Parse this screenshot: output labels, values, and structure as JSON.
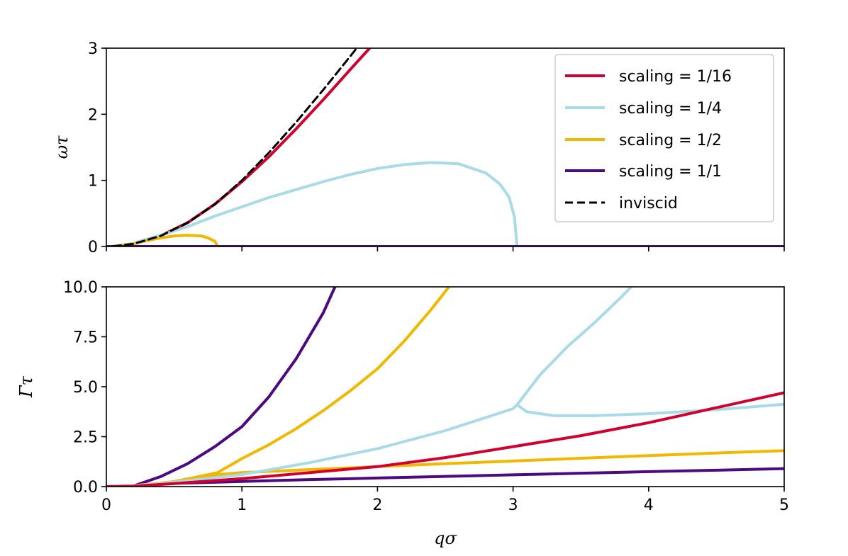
{
  "chart_data": [
    {
      "type": "line",
      "panel": "top",
      "ylabel": "ωτ",
      "xlim": [
        0,
        5
      ],
      "ylim": [
        0,
        3
      ],
      "yticks": [
        "0",
        "1",
        "2",
        "3"
      ],
      "series": [
        {
          "name": "scaling = 1/16",
          "color": "#d1002f",
          "style": "solid",
          "x": [
            0.05,
            0.2,
            0.4,
            0.6,
            0.8,
            1.0,
            1.2,
            1.4,
            1.6,
            1.8,
            2.0,
            2.2
          ],
          "y": [
            0.002,
            0.04,
            0.16,
            0.36,
            0.64,
            0.98,
            1.36,
            1.78,
            2.22,
            2.68,
            3.13,
            3.6
          ]
        },
        {
          "name": "scaling = 1/4",
          "color": "#a8dbe7",
          "style": "solid",
          "x": [
            0.05,
            0.2,
            0.4,
            0.6,
            0.8,
            1.0,
            1.2,
            1.4,
            1.6,
            1.8,
            2.0,
            2.2,
            2.4,
            2.6,
            2.8,
            2.9,
            2.97,
            3.01,
            3.03
          ],
          "y": [
            0.002,
            0.05,
            0.17,
            0.3,
            0.46,
            0.6,
            0.74,
            0.86,
            0.98,
            1.09,
            1.18,
            1.24,
            1.27,
            1.25,
            1.11,
            0.95,
            0.75,
            0.45,
            0.0
          ]
        },
        {
          "name": "scaling = 1/2",
          "color": "#f2b800",
          "style": "solid",
          "x": [
            0.05,
            0.2,
            0.3,
            0.4,
            0.5,
            0.6,
            0.7,
            0.75,
            0.8,
            0.82
          ],
          "y": [
            0.002,
            0.04,
            0.09,
            0.13,
            0.16,
            0.17,
            0.16,
            0.13,
            0.08,
            0.0
          ]
        },
        {
          "name": "scaling = 1/1",
          "color": "#4b0a80",
          "style": "solid",
          "x": [
            0.0,
            5.0
          ],
          "y": [
            0.0,
            0.0
          ]
        },
        {
          "name": "inviscid",
          "color": "#000000",
          "style": "dashed",
          "x": [
            0.05,
            0.2,
            0.4,
            0.6,
            0.8,
            1.0,
            1.2,
            1.4,
            1.6,
            1.8,
            1.9,
            1.97
          ],
          "y": [
            0.002,
            0.04,
            0.16,
            0.36,
            0.64,
            1.0,
            1.42,
            1.88,
            2.37,
            2.88,
            3.14,
            3.3
          ]
        }
      ],
      "legend": "top-right"
    },
    {
      "type": "line",
      "panel": "bottom",
      "xlabel": "qσ",
      "ylabel": "Γτ",
      "xlim": [
        0,
        5
      ],
      "ylim": [
        0,
        10
      ],
      "xticks": [
        "0",
        "1",
        "2",
        "3",
        "4",
        "5"
      ],
      "yticks": [
        "0.0",
        "2.5",
        "5.0",
        "7.5",
        "10.0"
      ],
      "series": [
        {
          "name": "scaling = 1/1 (upper)",
          "color": "#4b0a80",
          "x": [
            0.0,
            0.2,
            0.4,
            0.6,
            0.8,
            1.0,
            1.2,
            1.4,
            1.6,
            1.7
          ],
          "y": [
            0.0,
            0.03,
            0.5,
            1.15,
            2.0,
            3.0,
            4.5,
            6.4,
            8.7,
            10.2
          ]
        },
        {
          "name": "scaling = 1/1 (lower)",
          "color": "#4b0a80",
          "x": [
            0.0,
            0.2,
            0.5,
            1.0,
            1.5,
            2.0,
            2.5,
            3.0,
            3.5,
            4.0,
            4.5,
            5.0
          ],
          "y": [
            0.0,
            0.03,
            0.16,
            0.26,
            0.35,
            0.43,
            0.51,
            0.59,
            0.67,
            0.75,
            0.82,
            0.9
          ]
        },
        {
          "name": "scaling = 1/2 (upper)",
          "color": "#f2b800",
          "x": [
            0.0,
            0.2,
            0.5,
            0.82,
            1.0,
            1.2,
            1.4,
            1.6,
            1.8,
            2.0,
            2.2,
            2.4,
            2.55
          ],
          "y": [
            0.0,
            0.04,
            0.25,
            0.7,
            1.4,
            2.1,
            2.9,
            3.8,
            4.8,
            5.9,
            7.3,
            8.9,
            10.2
          ]
        },
        {
          "name": "scaling = 1/2 (lower)",
          "color": "#f2b800",
          "x": [
            0.0,
            0.2,
            0.5,
            0.82,
            1.0,
            1.5,
            2.0,
            2.5,
            3.0,
            3.5,
            4.0,
            4.5,
            5.0
          ],
          "y": [
            0.0,
            0.04,
            0.25,
            0.6,
            0.7,
            0.85,
            1.0,
            1.15,
            1.28,
            1.42,
            1.55,
            1.68,
            1.8
          ]
        },
        {
          "name": "scaling = 1/4 (main)",
          "color": "#a8dbe7",
          "x": [
            0.0,
            0.2,
            0.5,
            1.0,
            1.5,
            2.0,
            2.5,
            3.0,
            3.03
          ],
          "y": [
            0.0,
            0.04,
            0.22,
            0.6,
            1.2,
            1.9,
            2.8,
            3.9,
            4.1
          ]
        },
        {
          "name": "scaling = 1/4 (upper)",
          "color": "#a8dbe7",
          "x": [
            3.03,
            3.2,
            3.4,
            3.6,
            3.8,
            3.9
          ],
          "y": [
            4.1,
            5.6,
            7.0,
            8.2,
            9.5,
            10.2
          ]
        },
        {
          "name": "scaling = 1/4 (lower)",
          "color": "#a8dbe7",
          "x": [
            3.03,
            3.1,
            3.3,
            3.6,
            4.0,
            4.5,
            5.0
          ],
          "y": [
            4.1,
            3.75,
            3.55,
            3.55,
            3.65,
            3.85,
            4.12
          ]
        },
        {
          "name": "scaling = 1/16",
          "color": "#d1002f",
          "x": [
            0.0,
            0.2,
            0.5,
            1.0,
            1.5,
            2.0,
            2.5,
            3.0,
            3.5,
            4.0,
            4.5,
            5.0
          ],
          "y": [
            0.0,
            0.02,
            0.15,
            0.4,
            0.7,
            1.0,
            1.45,
            2.0,
            2.55,
            3.2,
            3.95,
            4.7
          ]
        }
      ]
    }
  ],
  "legend": {
    "items": [
      {
        "label": "scaling = 1/16",
        "color": "#d1002f",
        "style": "solid"
      },
      {
        "label": "scaling = 1/4",
        "color": "#a8dbe7",
        "style": "solid"
      },
      {
        "label": "scaling = 1/2",
        "color": "#f2b800",
        "style": "solid"
      },
      {
        "label": "scaling = 1/1",
        "color": "#4b0a80",
        "style": "solid"
      },
      {
        "label": "inviscid",
        "color": "#000000",
        "style": "dashed"
      }
    ]
  }
}
